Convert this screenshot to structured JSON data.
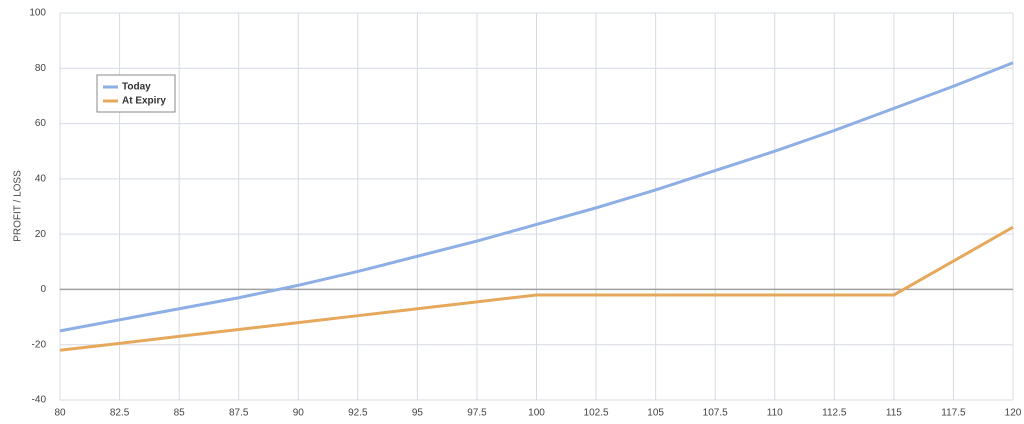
{
  "chart_data": {
    "type": "line",
    "y_label": "PROFIT / LOSS",
    "x": [
      80,
      82.5,
      85,
      87.5,
      90,
      92.5,
      95,
      97.5,
      100,
      102.5,
      105,
      107.5,
      110,
      112.5,
      115,
      117.5,
      120
    ],
    "series": [
      {
        "name": "Today",
        "color": "#8eaee6",
        "values": [
          -15,
          -11,
          -7,
          -3,
          1.5,
          6.5,
          12,
          17.5,
          23.5,
          29.5,
          36,
          43,
          50,
          57.5,
          65.5,
          73.5,
          82
        ]
      },
      {
        "name": "At Expiry",
        "color": "#e6a85c",
        "values": [
          -22,
          -19.5,
          -17,
          -14.5,
          -12,
          -9.5,
          -7,
          -4.5,
          -2,
          -2,
          -2,
          -2,
          -2,
          -2,
          -2,
          10.25,
          22.5
        ]
      }
    ],
    "xlim": [
      80,
      120
    ],
    "xticks": [
      80,
      82.5,
      85,
      87.5,
      90,
      92.5,
      95,
      97.5,
      100,
      102.5,
      105,
      107.5,
      110,
      112.5,
      115,
      117.5,
      120
    ],
    "ylim": [
      -40,
      100
    ],
    "yticks": [
      -40,
      -20,
      0,
      20,
      40,
      60,
      80,
      100
    ],
    "grid": true,
    "legend": "upper-left"
  }
}
